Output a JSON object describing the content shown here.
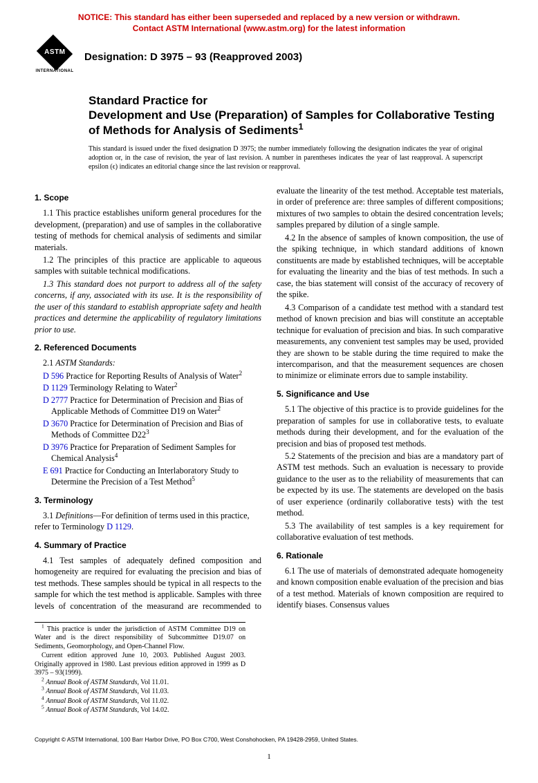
{
  "notice": {
    "line1": "NOTICE: This standard has either been superseded and replaced by a new version or withdrawn.",
    "line2": "Contact ASTM International (www.astm.org) for the latest information",
    "color": "#cc0000"
  },
  "logo": {
    "abbr": "ASTM",
    "sub": "INTERNATIONAL"
  },
  "designation": "Designation: D 3975 – 93 (Reapproved 2003)",
  "title": {
    "pre": "Standard Practice for",
    "main": "Development and Use (Preparation) of Samples for Collaborative Testing of Methods for Analysis of Sediments",
    "sup": "1"
  },
  "issuance": "This standard is issued under the fixed designation D 3975; the number immediately following the designation indicates the year of original adoption or, in the case of revision, the year of last revision. A number in parentheses indicates the year of last reapproval. A superscript epsilon (ϵ) indicates an editorial change since the last revision or reapproval.",
  "sections": {
    "scope": {
      "head": "1. Scope",
      "p1": "1.1 This practice establishes uniform general procedures for the development, (preparation) and use of samples in the collaborative testing of methods for chemical analysis of sediments and similar materials.",
      "p2": "1.2 The principles of this practice are applicable to aqueous samples with suitable technical modifications.",
      "p3": "1.3 This standard does not purport to address all of the safety concerns, if any, associated with its use. It is the responsibility of the user of this standard to establish appropriate safety and health practices and determine the applicability of regulatory limitations prior to use."
    },
    "refdocs": {
      "head": "2. Referenced Documents",
      "sub": "2.1 ",
      "subit": "ASTM Standards:",
      "items": [
        {
          "code": "D 596",
          "text": " Practice for Reporting Results of Analysis of Water",
          "fn": "2"
        },
        {
          "code": "D 1129",
          "text": " Terminology Relating to Water",
          "fn": "2"
        },
        {
          "code": "D 2777",
          "text": " Practice for Determination of Precision and Bias of Applicable Methods of Committee D19 on Water",
          "fn": "2"
        },
        {
          "code": "D 3670",
          "text": " Practice for Determination of Precision and Bias of Methods of Committee D22",
          "fn": "3"
        },
        {
          "code": "D 3976",
          "text": " Practice for Preparation of Sediment Samples for Chemical Analysis",
          "fn": "4"
        },
        {
          "code": "E 691",
          "text": " Practice for Conducting an Interlaboratory Study to Determine the Precision of a Test Method",
          "fn": "5"
        }
      ]
    },
    "terminology": {
      "head": "3. Terminology",
      "p_pre": "3.1 ",
      "p_it": "Definitions",
      "p_post": "—For definition of terms used in this practice, refer to Terminology ",
      "link": "D 1129",
      "p_end": "."
    },
    "summary": {
      "head": "4. Summary of Practice",
      "p1": "4.1 Test samples of adequately defined composition and homogeneity are required for evaluating the precision and bias of test methods. These samples should be typical in all respects to the sample for which the test method is applicable. Samples with three levels of concentration of the measurand are recommended to evaluate the linearity of the test method. Acceptable test materials, in order of preference are: three samples of different compositions; mixtures of two samples to obtain the desired concentration levels; samples prepared by dilution of a single sample.",
      "p2": "4.2 In the absence of samples of known composition, the use of the spiking technique, in which standard additions of known constituents are made by established techniques, will be acceptable for evaluating the linearity and the bias of test methods. In such a case, the bias statement will consist of the accuracy of recovery of the spike.",
      "p3": "4.3 Comparison of a candidate test method with a standard test method of known precision and bias will constitute an acceptable technique for evaluation of precision and bias. In such comparative measurements, any convenient test samples may be used, provided they are shown to be stable during the time required to make the intercomparison, and that the measurement sequences are chosen to minimize or eliminate errors due to sample instability."
    },
    "significance": {
      "head": "5. Significance and Use",
      "p1": "5.1 The objective of this practice is to provide guidelines for the preparation of samples for use in collaborative tests, to evaluate methods during their development, and for the evaluation of the precision and bias of proposed test methods.",
      "p2": "5.2 Statements of the precision and bias are a mandatory part of ASTM test methods. Such an evaluation is necessary to provide guidance to the user as to the reliability of measurements that can be expected by its use. The statements are developed on the basis of user experience (ordinarily collaborative tests) with the test method.",
      "p3": "5.3 The availability of test samples is a key requirement for collaborative evaluation of test methods."
    },
    "rationale": {
      "head": "6. Rationale",
      "p1": "6.1 The use of materials of demonstrated adequate homogeneity and known composition enable evaluation of the precision and bias of a test method. Materials of known composition are required to identify biases. Consensus values"
    }
  },
  "footnotes": {
    "f1": " This practice is under the jurisdiction of ASTM Committee D19 on Water and is the direct responsibility of Subcommittee D19.07 on Sediments, Geomorphology, and Open-Channel Flow.",
    "f1b": "Current edition approved June 10, 2003. Published August 2003. Originally approved in 1980. Last previous edition approved in 1999 as D 3975 – 93(1999).",
    "f2": "Annual Book of ASTM Standards",
    "f2v": ", Vol 11.01.",
    "f3v": ", Vol 11.03.",
    "f4v": ", Vol 11.02.",
    "f5v": ", Vol 14.02."
  },
  "copyright": "Copyright © ASTM International, 100 Barr Harbor Drive, PO Box C700, West Conshohocken, PA 19428-2959, United States.",
  "pagenum": "1",
  "link_color": "#0000cc"
}
